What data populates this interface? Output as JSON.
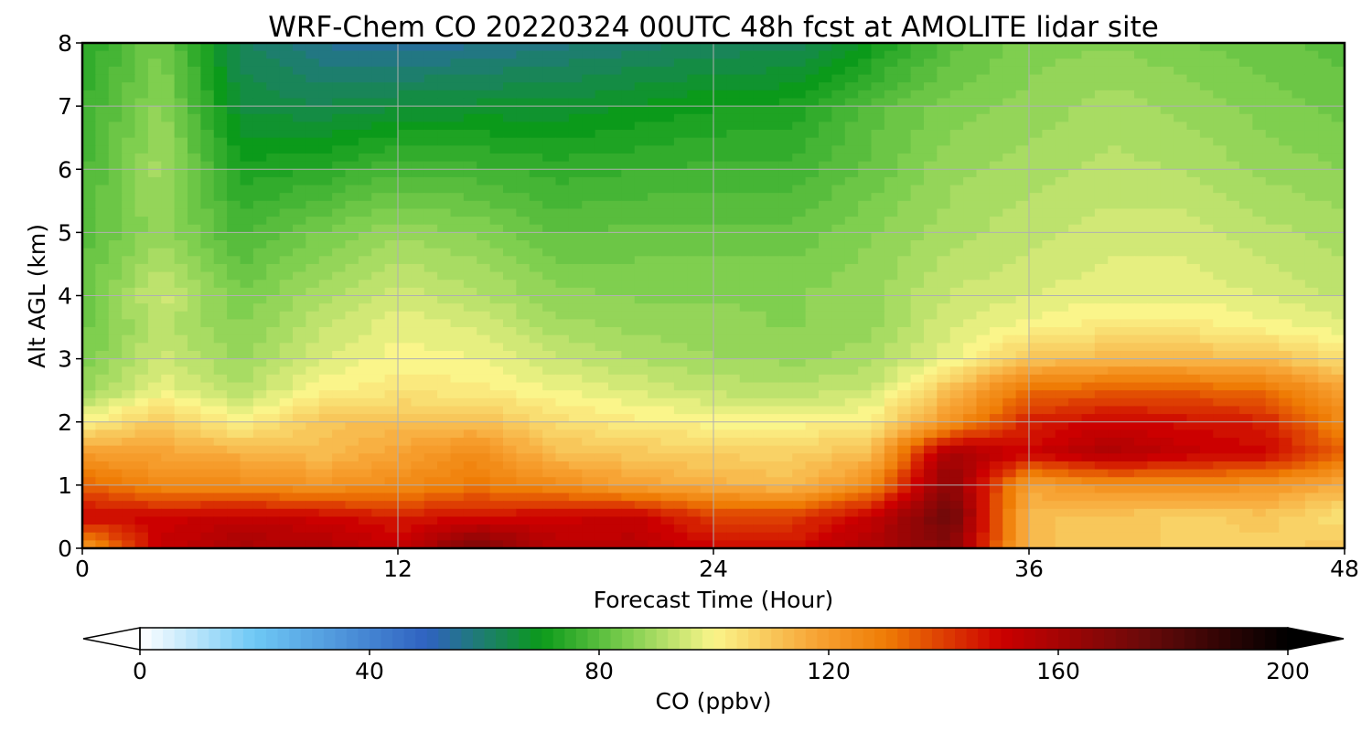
{
  "chart_data": {
    "type": "heatmap",
    "title": "WRF-Chem CO  20220324 00UTC 48h fcst at AMOLITE lidar site",
    "xlabel": "Forecast Time (Hour)",
    "ylabel": "Alt AGL (km)",
    "xlim": [
      0,
      48
    ],
    "ylim": [
      0,
      8
    ],
    "x_ticks": [
      "0",
      "12",
      "24",
      "36",
      "48"
    ],
    "y_ticks": [
      "0",
      "1",
      "2",
      "3",
      "4",
      "5",
      "6",
      "7",
      "8"
    ],
    "grid": true,
    "x_hours": [
      0,
      3,
      6,
      9,
      12,
      15,
      18,
      21,
      24,
      27,
      30,
      33,
      36,
      39,
      42,
      45,
      48
    ],
    "y_km": [
      0,
      0.5,
      1,
      1.5,
      2,
      2.5,
      3,
      3.5,
      4,
      5,
      6,
      7,
      8
    ],
    "values_ppbv": [
      [
        118,
        152,
        160,
        158,
        152,
        172,
        155,
        155,
        150,
        148,
        158,
        168,
        112,
        110,
        108,
        108,
        110
      ],
      [
        150,
        150,
        152,
        150,
        145,
        148,
        150,
        152,
        140,
        140,
        152,
        175,
        112,
        110,
        108,
        110,
        104
      ],
      [
        135,
        125,
        125,
        122,
        125,
        130,
        125,
        118,
        115,
        112,
        125,
        168,
        118,
        124,
        125,
        122,
        115
      ],
      [
        120,
        118,
        115,
        112,
        118,
        125,
        112,
        110,
        108,
        108,
        112,
        160,
        150,
        158,
        152,
        150,
        135
      ],
      [
        100,
        110,
        100,
        110,
        112,
        112,
        105,
        102,
        100,
        100,
        102,
        122,
        145,
        150,
        148,
        145,
        125
      ],
      [
        88,
        98,
        92,
        100,
        103,
        102,
        99,
        96,
        93,
        92,
        94,
        112,
        132,
        135,
        135,
        132,
        118
      ],
      [
        84,
        95,
        88,
        96,
        100,
        99,
        94,
        91,
        89,
        88,
        90,
        98,
        110,
        113,
        113,
        112,
        105
      ],
      [
        83,
        92,
        86,
        93,
        98,
        96,
        90,
        88,
        87,
        86,
        88,
        96,
        100,
        103,
        103,
        100,
        97
      ],
      [
        82,
        95,
        84,
        90,
        95,
        92,
        87,
        86,
        86,
        86,
        88,
        94,
        96,
        98,
        98,
        96,
        93
      ],
      [
        80,
        88,
        78,
        84,
        88,
        86,
        81,
        82,
        82,
        82,
        86,
        90,
        93,
        95,
        95,
        92,
        90
      ],
      [
        78,
        90,
        72,
        74,
        78,
        77,
        75,
        76,
        77,
        77,
        82,
        88,
        90,
        92,
        91,
        88,
        86
      ],
      [
        76,
        87,
        66,
        64,
        66,
        67,
        67,
        69,
        71,
        72,
        80,
        85,
        87,
        90,
        88,
        85,
        83
      ],
      [
        73,
        84,
        62,
        56,
        54,
        56,
        58,
        60,
        62,
        62,
        70,
        80,
        85,
        86,
        84,
        82,
        80
      ]
    ],
    "colorbar": {
      "label": "CO  (ppbv)",
      "range": [
        0,
        200
      ],
      "ticks": [
        "0",
        "40",
        "80",
        "120",
        "160",
        "200"
      ],
      "extend": "both",
      "stops": [
        {
          "v": 0,
          "c": "#ffffff"
        },
        {
          "v": 20,
          "c": "#6ec8f5"
        },
        {
          "v": 50,
          "c": "#2f62c0"
        },
        {
          "v": 70,
          "c": "#0b9a1a"
        },
        {
          "v": 85,
          "c": "#7fcf4f"
        },
        {
          "v": 100,
          "c": "#faf58a"
        },
        {
          "v": 118,
          "c": "#f7a233"
        },
        {
          "v": 130,
          "c": "#ef7c05"
        },
        {
          "v": 150,
          "c": "#cc0000"
        },
        {
          "v": 175,
          "c": "#6a0a0a"
        },
        {
          "v": 200,
          "c": "#000000"
        }
      ]
    }
  }
}
